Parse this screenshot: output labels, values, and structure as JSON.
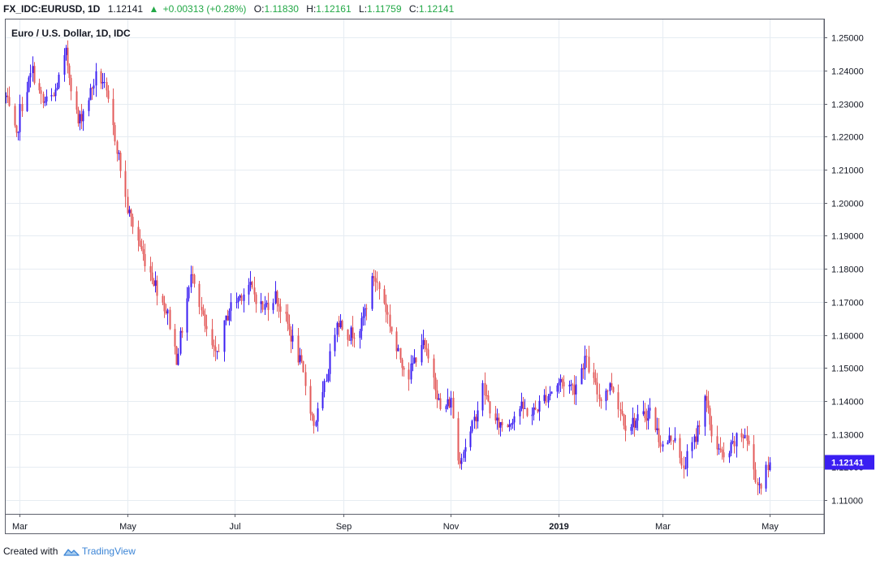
{
  "header": {
    "symbol": "FX_IDC:EURUSD, 1D",
    "last": "1.12141",
    "change": "+0.00313 (+0.28%)",
    "o_label": "O:",
    "o_value": "1.11830",
    "h_label": "H:",
    "h_value": "1.12161",
    "l_label": "L:",
    "l_value": "1.11759",
    "c_label": "C:",
    "c_value": "1.12141"
  },
  "legend": {
    "title": "Euro / U.S. Dollar, 1D, IDC"
  },
  "footer": {
    "created_with": "Created with",
    "brand": "TradingView"
  },
  "colors": {
    "up": "#3a1ef2",
    "down": "#e35a5a",
    "price_tag": "#3a1ef2",
    "grid": "#e6ecf2"
  },
  "chart_data": {
    "type": "candlestick",
    "title": "Euro / U.S. Dollar, 1D, IDC",
    "y_ticks": [
      "1.11000",
      "1.12000",
      "1.13000",
      "1.14000",
      "1.15000",
      "1.16000",
      "1.17000",
      "1.18000",
      "1.19000",
      "1.20000",
      "1.21000",
      "1.22000",
      "1.23000",
      "1.24000",
      "1.25000"
    ],
    "ylim": [
      1.1058,
      1.2555
    ],
    "x_ticks": [
      {
        "label": "Mar",
        "date": "2018-03-01"
      },
      {
        "label": "May",
        "date": "2018-05-01"
      },
      {
        "label": "Jul",
        "date": "2018-07-01"
      },
      {
        "label": "Sep",
        "date": "2018-09-01"
      },
      {
        "label": "Nov",
        "date": "2018-11-01"
      },
      {
        "label": "2019",
        "date": "2019-01-01"
      },
      {
        "label": "Mar",
        "date": "2019-03-01"
      },
      {
        "label": "May",
        "date": "2019-05-01"
      }
    ],
    "xlim": [
      "2018-02-21",
      "2019-06-01"
    ],
    "last_price_label": "1.12141",
    "last_close": 1.12141,
    "path_days": [
      "2018-02-21",
      "2018-02-27",
      "2018-03-01",
      "2018-03-08",
      "2018-03-14",
      "2018-03-20",
      "2018-03-27",
      "2018-04-03",
      "2018-04-09",
      "2018-04-13",
      "2018-04-17",
      "2018-04-24",
      "2018-05-01",
      "2018-05-10",
      "2018-05-15",
      "2018-05-24",
      "2018-05-29",
      "2018-06-07",
      "2018-06-14",
      "2018-06-20",
      "2018-06-28",
      "2018-07-09",
      "2018-07-17",
      "2018-07-24",
      "2018-07-31",
      "2018-08-08",
      "2018-08-15",
      "2018-08-20",
      "2018-08-28",
      "2018-09-04",
      "2018-09-11",
      "2018-09-18",
      "2018-09-24",
      "2018-10-01",
      "2018-10-08",
      "2018-10-15",
      "2018-10-22",
      "2018-10-26",
      "2018-11-01",
      "2018-11-05",
      "2018-11-12",
      "2018-11-19",
      "2018-11-26",
      "2018-12-03",
      "2018-12-10",
      "2018-12-17",
      "2018-12-24",
      "2019-01-02",
      "2019-01-10",
      "2019-01-16",
      "2019-01-24",
      "2019-01-31",
      "2019-02-08",
      "2019-02-15",
      "2019-02-22",
      "2019-03-01",
      "2019-03-08",
      "2019-03-12",
      "2019-03-20",
      "2019-03-25",
      "2019-03-29",
      "2019-04-05",
      "2019-04-12",
      "2019-04-17",
      "2019-04-19",
      "2019-04-24",
      "2019-04-26",
      "2019-05-01"
    ],
    "path_closes": [
      1.232,
      1.219,
      1.228,
      1.24,
      1.23,
      1.232,
      1.245,
      1.224,
      1.232,
      1.238,
      1.237,
      1.22,
      1.198,
      1.184,
      1.178,
      1.166,
      1.153,
      1.18,
      1.162,
      1.153,
      1.168,
      1.175,
      1.168,
      1.172,
      1.163,
      1.15,
      1.133,
      1.141,
      1.165,
      1.16,
      1.163,
      1.178,
      1.17,
      1.155,
      1.148,
      1.158,
      1.148,
      1.137,
      1.14,
      1.122,
      1.13,
      1.144,
      1.133,
      1.133,
      1.138,
      1.136,
      1.141,
      1.146,
      1.144,
      1.153,
      1.141,
      1.145,
      1.133,
      1.134,
      1.137,
      1.126,
      1.13,
      1.119,
      1.129,
      1.142,
      1.13,
      1.122,
      1.128,
      1.13,
      1.126,
      1.115,
      1.115,
      1.121
    ]
  }
}
